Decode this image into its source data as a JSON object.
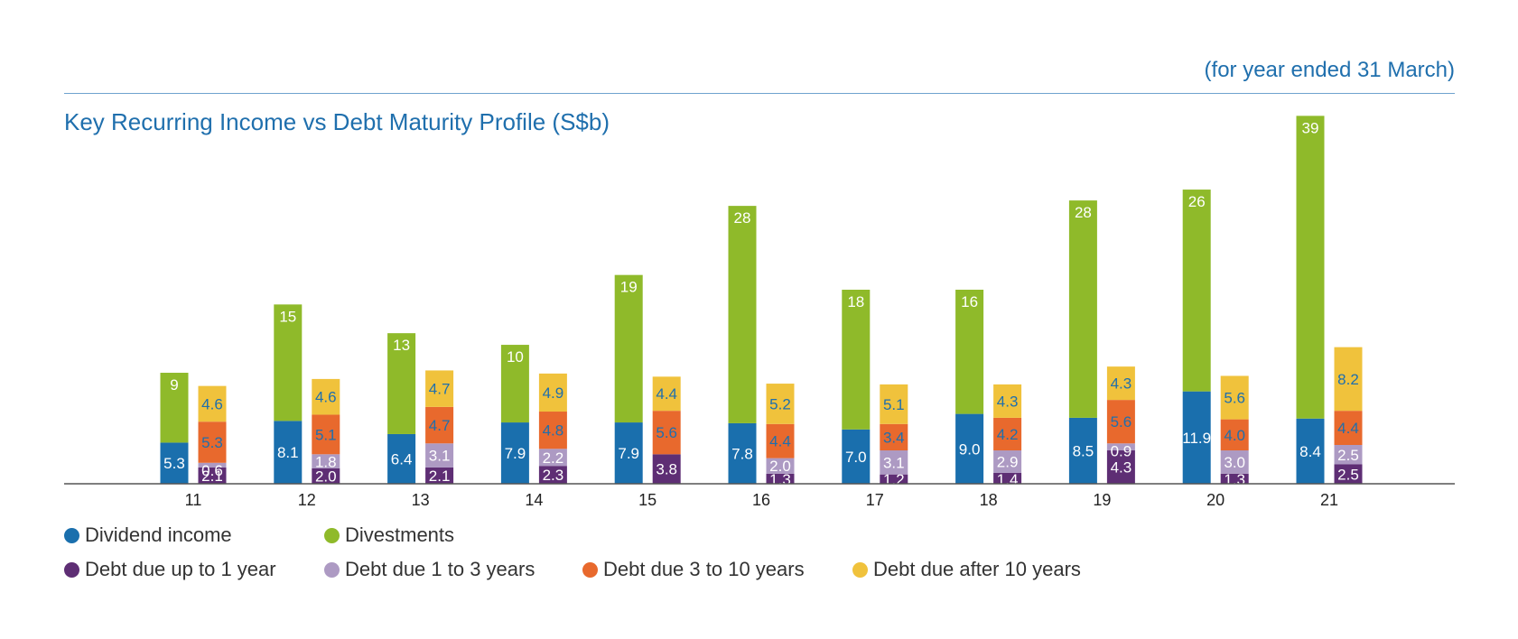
{
  "header": {
    "note": "(for year ended 31 March)",
    "title": "Key Recurring Income vs Debt Maturity Profile (S$b)"
  },
  "colors": {
    "dividend": "#1a6fad",
    "divestments": "#8fba2a",
    "debt_up_to_1": "#5e2e74",
    "debt_1_to_3": "#ad9ac3",
    "debt_3_to_10": "#e8692d",
    "debt_after_10": "#f0c23c",
    "axis": "#555555"
  },
  "legend": [
    {
      "label": "Dividend income",
      "color": "#1a6fad"
    },
    {
      "label": "Divestments",
      "color": "#8fba2a"
    },
    {
      "label": "Debt due up to 1 year",
      "color": "#5e2e74"
    },
    {
      "label": "Debt due 1 to 3 years",
      "color": "#ad9ac3"
    },
    {
      "label": "Debt due 3 to 10 years",
      "color": "#e8692d"
    },
    {
      "label": "Debt due after 10 years",
      "color": "#f0c23c"
    }
  ],
  "chart_data": {
    "type": "bar",
    "stacked": true,
    "grouped": true,
    "title": "Key Recurring Income vs Debt Maturity Profile (S$b)",
    "xlabel": "",
    "ylabel": "",
    "grid": false,
    "legend_position": "bottom-left",
    "categories": [
      "11",
      "12",
      "13",
      "14",
      "15",
      "16",
      "17",
      "18",
      "19",
      "20",
      "21"
    ],
    "stacks": [
      {
        "stack": "income",
        "series": [
          {
            "name": "Dividend income",
            "values": [
              5.3,
              8.1,
              6.4,
              7.9,
              7.9,
              7.8,
              7.0,
              9.0,
              8.5,
              11.9,
              8.4
            ],
            "labels": [
              "5.3",
              "8.1",
              "6.4",
              "7.9",
              "7.9",
              "7.8",
              "7.0",
              "9.0",
              "8.5",
              "11.9",
              "8.4"
            ]
          },
          {
            "name": "Divestments",
            "values": [
              9,
              15,
              13,
              10,
              19,
              28,
              18,
              16,
              28,
              26,
              39
            ],
            "labels": [
              "9",
              "15",
              "13",
              "10",
              "19",
              "28",
              "18",
              "16",
              "28",
              "26",
              "39"
            ]
          }
        ]
      },
      {
        "stack": "debt",
        "series": [
          {
            "name": "Debt due up to 1 year",
            "values": [
              2.1,
              2.0,
              2.1,
              2.3,
              3.8,
              1.3,
              1.2,
              1.4,
              4.3,
              1.3,
              2.5
            ],
            "labels": [
              "2.1",
              "2.0",
              "2.1",
              "2.3",
              "3.8",
              "1.3",
              "1.2",
              "1.4",
              "4.3",
              "1.3",
              "2.5"
            ]
          },
          {
            "name": "Debt due 1 to 3 years",
            "values": [
              0.6,
              1.8,
              3.1,
              2.2,
              0,
              2.0,
              3.1,
              2.9,
              0.9,
              3.0,
              2.5
            ],
            "labels": [
              "0.6",
              "1.8",
              "3.1",
              "2.2",
              "",
              "2.0",
              "3.1",
              "2.9",
              "0.9",
              "3.0",
              "2.5"
            ]
          },
          {
            "name": "Debt due 3 to 10 years",
            "values": [
              5.3,
              5.1,
              4.7,
              4.8,
              5.6,
              4.4,
              3.4,
              4.2,
              5.6,
              4.0,
              4.4
            ],
            "labels": [
              "5.3",
              "5.1",
              "4.7",
              "4.8",
              "5.6",
              "4.4",
              "3.4",
              "4.2",
              "5.6",
              "4.0",
              "4.4"
            ]
          },
          {
            "name": "Debt due after 10 years",
            "values": [
              4.6,
              4.6,
              4.7,
              4.9,
              4.4,
              5.2,
              5.1,
              4.3,
              4.3,
              5.6,
              8.2
            ],
            "labels": [
              "4.6",
              "4.6",
              "4.7",
              "4.9",
              "4.4",
              "5.2",
              "5.1",
              "4.3",
              "4.3",
              "5.6",
              "8.2"
            ]
          }
        ]
      }
    ]
  }
}
